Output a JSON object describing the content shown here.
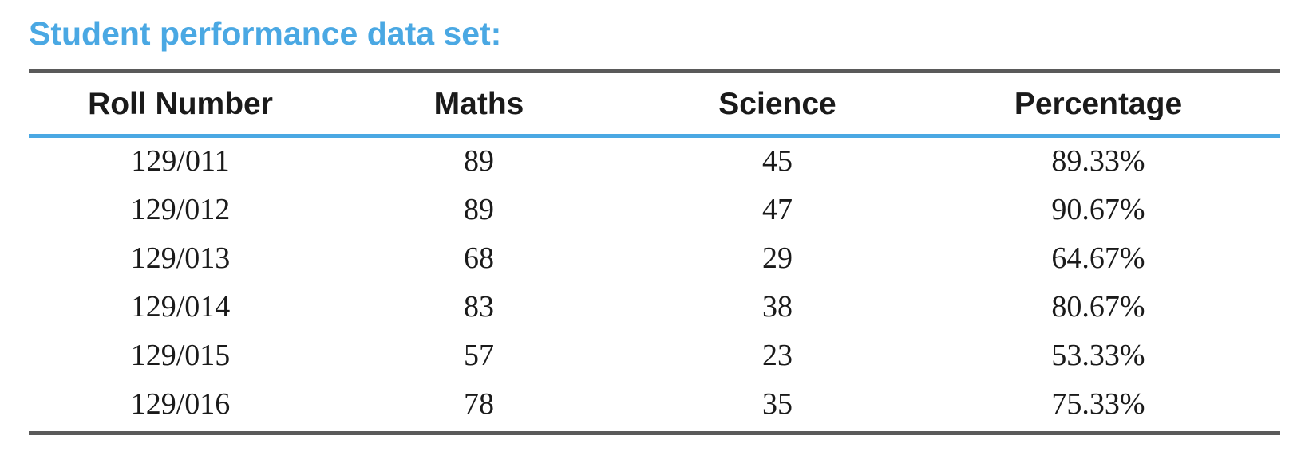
{
  "title": "Student performance data set:",
  "table": {
    "columns": [
      "Roll Number",
      "Maths",
      "Science",
      "Percentage"
    ],
    "rows": [
      [
        "129/011",
        "89",
        "45",
        "89.33%"
      ],
      [
        "129/012",
        "89",
        "47",
        "90.67%"
      ],
      [
        "129/013",
        "68",
        "29",
        "64.67%"
      ],
      [
        "129/014",
        "83",
        "38",
        "80.67%"
      ],
      [
        "129/015",
        "57",
        "23",
        "53.33%"
      ],
      [
        "129/016",
        "78",
        "35",
        "75.33%"
      ]
    ]
  },
  "colors": {
    "title": "#4aa8e3",
    "header_rule": "#4aa8e3",
    "outer_rules": "#5a5a5a",
    "text": "#1a1a1a"
  }
}
